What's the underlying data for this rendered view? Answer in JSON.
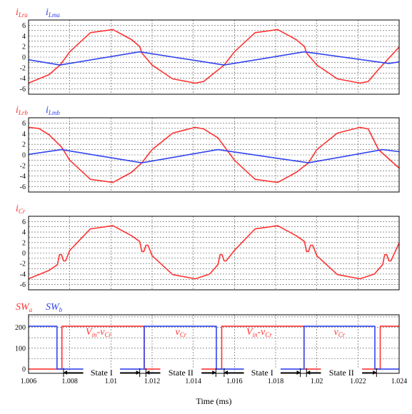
{
  "chart_data": {
    "type": "line",
    "x_axis": {
      "label": "Time (ms)",
      "range": [
        1.006,
        1.024
      ],
      "ticks": [
        "1.006",
        "1.008",
        "1.01",
        "1.012",
        "1.014",
        "1.016",
        "1.018",
        "1.02",
        "1.022",
        "1.024"
      ]
    },
    "grid": true,
    "panels": [
      {
        "id": "panel1",
        "ylim": [
          -7,
          7
        ],
        "yticks": [
          "6",
          "4",
          "2",
          "0",
          "-2",
          "-4",
          "-6"
        ],
        "legend": [
          {
            "base": "i",
            "sub": "Lra",
            "color": "#ff3333"
          },
          {
            "base": "i",
            "sub": "Lma",
            "color": "#3344ee"
          }
        ],
        "series": [
          {
            "name": "iLra",
            "color": "#ff3333",
            "x": [
              1.006,
              1.007,
              1.00753,
              1.008,
              1.009,
              1.0101,
              1.011,
              1.0114,
              1.0115,
              1.012,
              1.013,
              1.0141,
              1.0145,
              1.0155,
              1.016,
              1.017,
              1.0181,
              1.019,
              1.0194,
              1.0195,
              1.02,
              1.021,
              1.0221,
              1.0225,
              1.023,
              1.024
            ],
            "y": [
              -4.9,
              -3.3,
              -1.5,
              1.0,
              4.6,
              5.2,
              3.3,
              2.0,
              0.8,
              -1.5,
              -4.1,
              -4.9,
              -4.6,
              -1.5,
              1.0,
              4.6,
              5.2,
              3.3,
              2.0,
              0.8,
              -1.5,
              -4.1,
              -4.9,
              -4.6,
              -2.3,
              1.9
            ]
          },
          {
            "name": "iLma",
            "color": "#3344ee",
            "x": [
              1.006,
              1.00753,
              1.0114,
              1.0155,
              1.0194,
              1.0235,
              1.024
            ],
            "y": [
              -0.5,
              -1.5,
              1.0,
              -1.5,
              1.0,
              -1.2,
              -0.9
            ]
          }
        ]
      },
      {
        "id": "panel2",
        "ylim": [
          -7,
          7
        ],
        "yticks": [
          "6",
          "4",
          "2",
          "0",
          "-2",
          "-4",
          "-6"
        ],
        "legend": [
          {
            "base": "i",
            "sub": "Lrb",
            "color": "#ff3333"
          },
          {
            "base": "i",
            "sub": "Lmb",
            "color": "#3344ee"
          }
        ],
        "series": [
          {
            "name": "iLrb",
            "color": "#ff3333",
            "x": [
              1.006,
              1.0065,
              1.007,
              1.0076,
              1.008,
              1.009,
              1.0101,
              1.011,
              1.0115,
              1.012,
              1.013,
              1.0141,
              1.0145,
              1.0152,
              1.016,
              1.017,
              1.0181,
              1.019,
              1.0196,
              1.02,
              1.021,
              1.0221,
              1.0225,
              1.023,
              1.024
            ],
            "y": [
              5.2,
              5.0,
              3.8,
              1.5,
              -1.0,
              -4.6,
              -5.2,
              -3.3,
              -1.5,
              1.0,
              4.1,
              5.2,
              4.9,
              3.2,
              -1.0,
              -4.6,
              -5.2,
              -3.3,
              -1.5,
              1.0,
              4.1,
              5.2,
              4.9,
              1.0,
              -2.5
            ]
          },
          {
            "name": "iLmb",
            "color": "#3344ee",
            "x": [
              1.006,
              1.0076,
              1.0115,
              1.0152,
              1.0196,
              1.0232,
              1.024
            ],
            "y": [
              0.1,
              1.0,
              -1.5,
              1.0,
              -1.5,
              1.0,
              0.6
            ]
          }
        ]
      },
      {
        "id": "panel3",
        "ylim": [
          -7,
          7
        ],
        "yticks": [
          "6",
          "4",
          "2",
          "0",
          "-2",
          "-4",
          "-6"
        ],
        "legend": [
          {
            "base": "i",
            "sub": "Cr",
            "color": "#ff3333"
          }
        ],
        "series": [
          {
            "name": "iCr",
            "color": "#ff3333",
            "x": [
              1.006,
              1.007,
              1.0074,
              1.0075,
              1.0076,
              1.0077,
              1.0078,
              1.008,
              1.009,
              1.0101,
              1.011,
              1.0114,
              1.0115,
              1.0116,
              1.0117,
              1.0118,
              1.012,
              1.013,
              1.0141,
              1.0148,
              1.0152,
              1.0153,
              1.0154,
              1.0155,
              1.0156,
              1.016,
              1.017,
              1.0181,
              1.019,
              1.0194,
              1.0195,
              1.0196,
              1.0197,
              1.0198,
              1.02,
              1.021,
              1.0221,
              1.0228,
              1.0232,
              1.0233,
              1.0234,
              1.0235,
              1.0236,
              1.024
            ],
            "y": [
              -4.9,
              -3.3,
              -2.2,
              -0.3,
              -0.3,
              -1.5,
              -1.5,
              0.5,
              4.6,
              5.2,
              3.3,
              2.2,
              0.3,
              0.3,
              1.5,
              1.5,
              -0.5,
              -4.1,
              -4.9,
              -4.0,
              -2.2,
              -0.3,
              -0.3,
              -1.5,
              -1.5,
              0.5,
              4.6,
              5.2,
              3.3,
              2.2,
              0.3,
              0.3,
              1.5,
              1.5,
              -0.5,
              -4.1,
              -4.9,
              -4.0,
              -2.2,
              -0.3,
              -0.3,
              -1.5,
              -1.5,
              1.9
            ]
          }
        ]
      },
      {
        "id": "panel4",
        "ylim": [
          -20,
          260
        ],
        "yticks": [
          "200",
          "100",
          "0"
        ],
        "legend": [
          {
            "base": "SW",
            "sub": "a",
            "color": "#ff3333"
          },
          {
            "base": "SW",
            "sub": "b",
            "color": "#3344ee"
          }
        ],
        "series": [
          {
            "name": "SWa",
            "color": "#ff3333",
            "x": [
              1.006,
              1.00748,
              1.00748,
              1.00762,
              1.00762,
              1.01148,
              1.01148,
              1.01162,
              1.01162,
              1.01525,
              1.01525,
              1.01538,
              1.01538,
              1.01925,
              1.01925,
              1.01938,
              1.01938,
              1.02295,
              1.02295,
              1.02308,
              1.02308,
              1.024
            ],
            "y": [
              0,
              0,
              0,
              0,
              205,
              205,
              205,
              205,
              0,
              0,
              0,
              0,
              205,
              205,
              205,
              205,
              0,
              0,
              0,
              0,
              205,
              205
            ]
          },
          {
            "name": "SWb",
            "color": "#3344ee",
            "x": [
              1.006,
              1.00738,
              1.00738,
              1.00762,
              1.00762,
              1.01138,
              1.01138,
              1.01162,
              1.01162,
              1.01512,
              1.01512,
              1.01538,
              1.01538,
              1.01912,
              1.01912,
              1.01938,
              1.01938,
              1.02282,
              1.02282,
              1.02308,
              1.02308,
              1.024
            ],
            "y": [
              205,
              205,
              0,
              0,
              0,
              0,
              0,
              0,
              205,
              205,
              0,
              0,
              0,
              0,
              0,
              0,
              205,
              205,
              0,
              0,
              0,
              0
            ]
          }
        ],
        "annotations": {
          "voltage_labels": [
            {
              "x": 1.0094,
              "y": 165,
              "parts": [
                "V",
                "in",
                "-v",
                "Cr"
              ]
            },
            {
              "x": 1.0134,
              "y": 165,
              "parts": [
                "v",
                "Cr"
              ]
            },
            {
              "x": 1.0172,
              "y": 165,
              "parts": [
                "V",
                "in",
                "-v",
                "Cr"
              ]
            },
            {
              "x": 1.0211,
              "y": 165,
              "parts": [
                "v",
                "Cr"
              ]
            }
          ],
          "states": [
            {
              "label": "State I",
              "x0": 1.0077,
              "x1": 1.0114
            },
            {
              "label": "State II",
              "x0": 1.0117,
              "x1": 1.0151
            },
            {
              "label": "State I",
              "x0": 1.0155,
              "x1": 1.0192
            },
            {
              "label": "State II",
              "x0": 1.0195,
              "x1": 1.0229
            }
          ]
        }
      }
    ]
  }
}
